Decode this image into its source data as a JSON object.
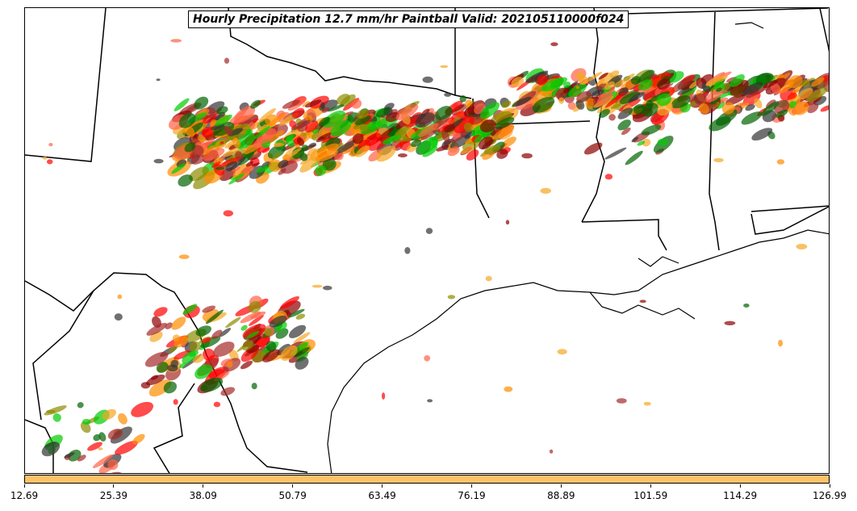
{
  "title": "Hourly Precipitation 12.7 mm/hr Paintball Valid: 202105110000f024",
  "colorbar": {
    "color": "#ffc266",
    "min": 12.69,
    "max": 126.99,
    "tick_labels": [
      "12.69",
      "25.39",
      "38.09",
      "50.79",
      "63.49",
      "76.19",
      "88.89",
      "101.59",
      "114.29",
      "126.99"
    ]
  },
  "member_colors": [
    "#ff8c00",
    "#ff0000",
    "#8b0000",
    "#00cc00",
    "#006400",
    "#8b8b00",
    "#a52a2a",
    "#ff6347",
    "#333333",
    "#f5a623"
  ]
}
